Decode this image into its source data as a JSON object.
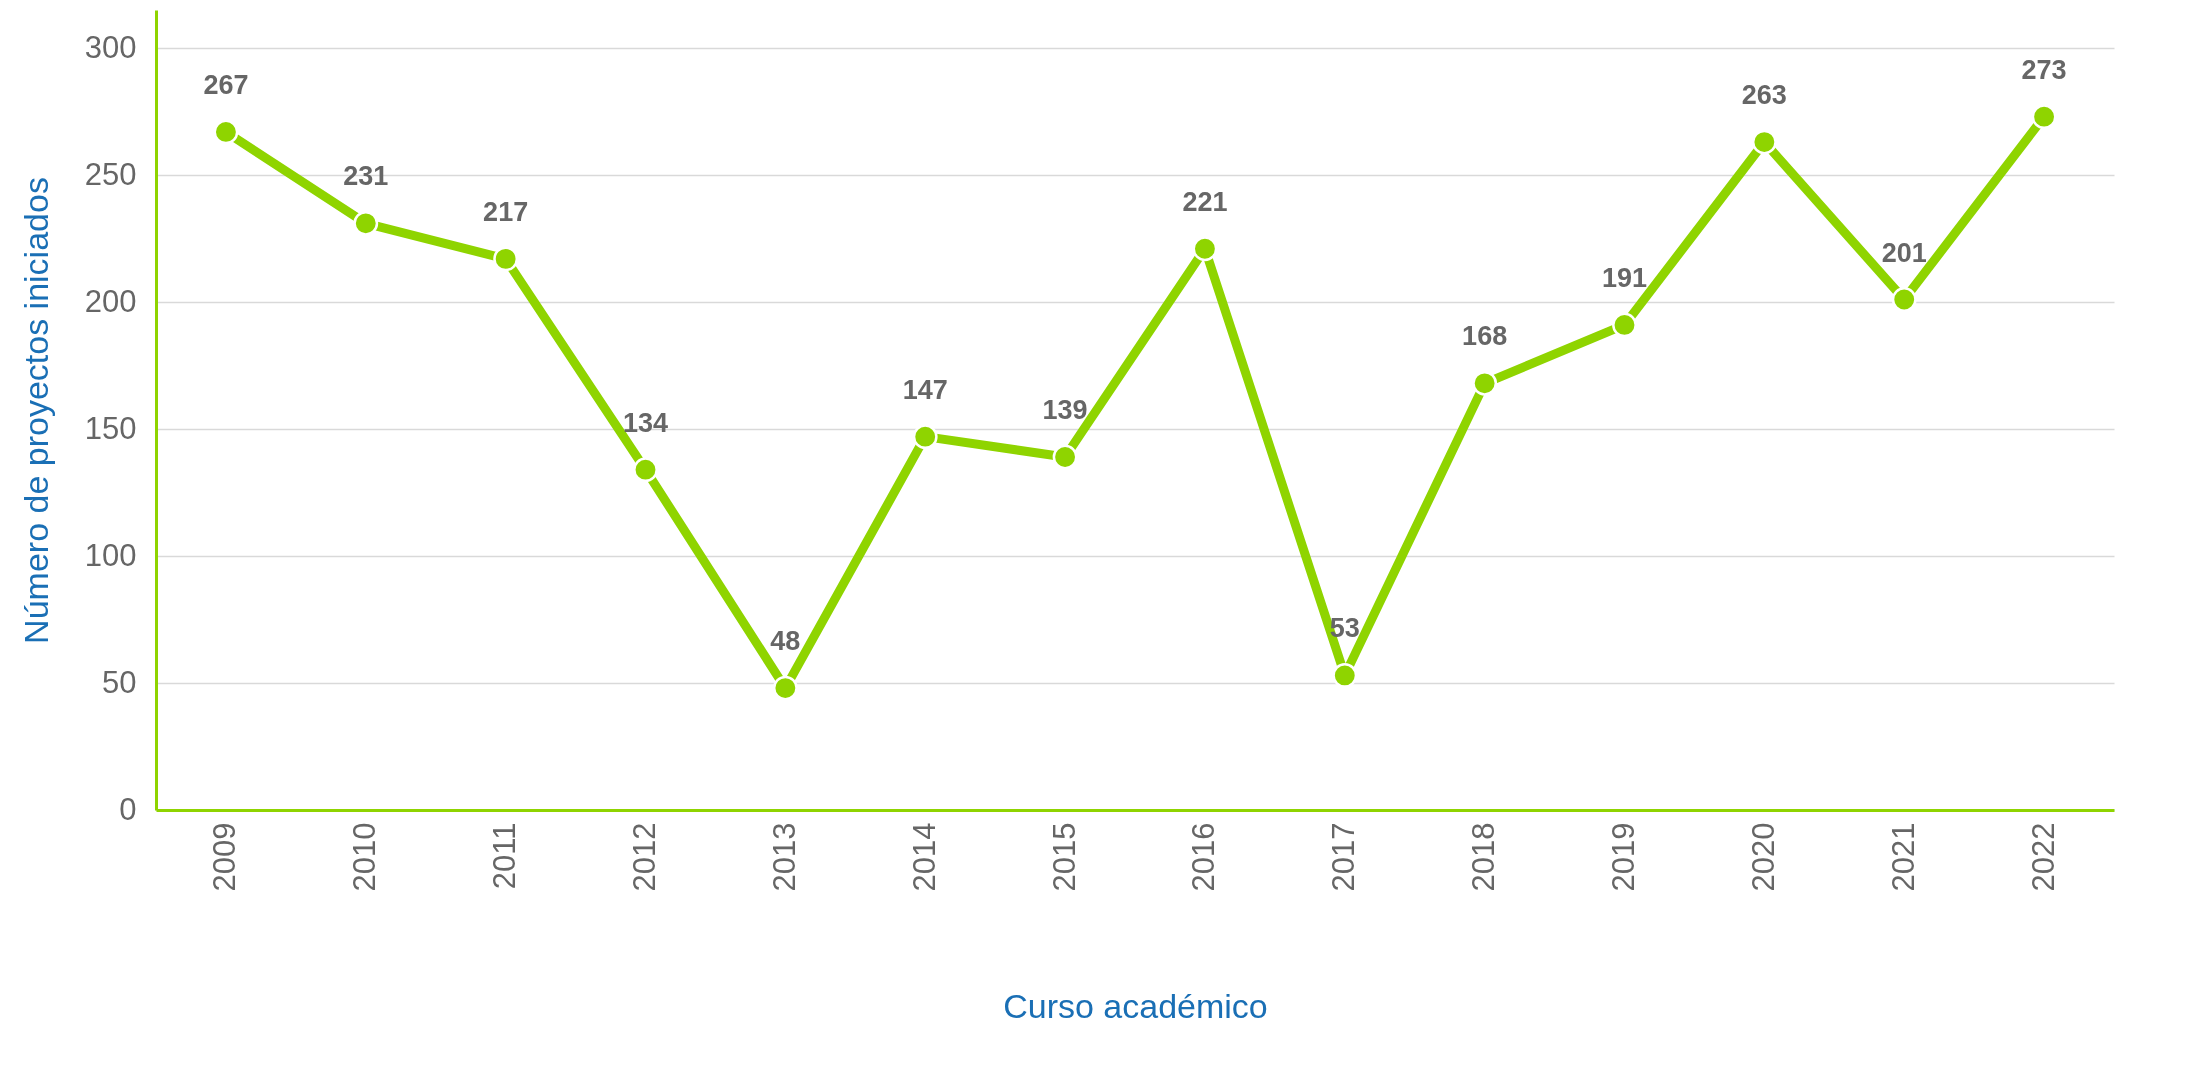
{
  "chart_data": {
    "type": "line",
    "xlabel": "Curso académico",
    "ylabel": "Número de proyectos iniciados",
    "categories": [
      "2009",
      "2010",
      "2011",
      "2012",
      "2013",
      "2014",
      "2015",
      "2016",
      "2017",
      "2018",
      "2019",
      "2020",
      "2021",
      "2022"
    ],
    "series": [
      {
        "color": "#8fd400",
        "values": [
          267,
          231,
          217,
          134,
          48,
          147,
          139,
          221,
          53,
          168,
          191,
          263,
          201,
          273
        ]
      }
    ],
    "ylim": [
      0,
      315
    ],
    "yticks": [
      0,
      50,
      100,
      150,
      200,
      250,
      300
    ],
    "grid": "y",
    "marker": "circle",
    "line_style": "solid",
    "data_labels": true,
    "legend": false
  }
}
